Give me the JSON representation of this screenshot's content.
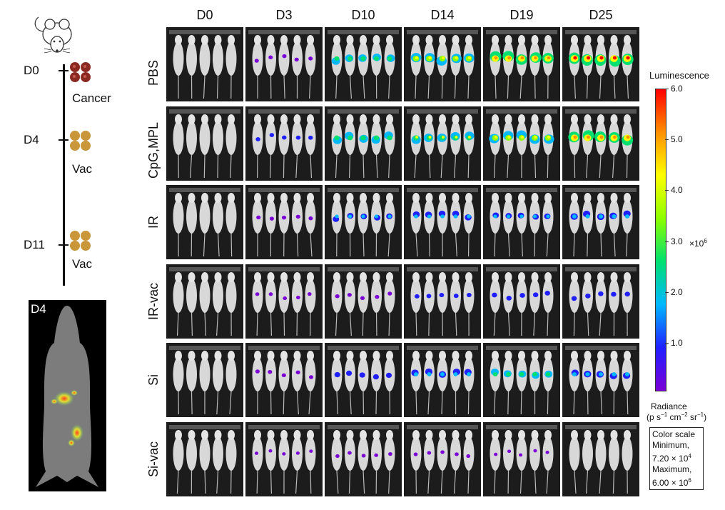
{
  "timeline": {
    "days": [
      "D0",
      "D4",
      "D11"
    ],
    "labels": [
      "Cancer",
      "Vac",
      "Vac"
    ],
    "inset_label": "D4",
    "mouse_icon": "mouse-icon",
    "cell_colors": {
      "cancer": "#8b2a22",
      "vac": "#c9963a"
    }
  },
  "grid": {
    "columns": [
      "D0",
      "D3",
      "D10",
      "D14",
      "D19",
      "D25"
    ],
    "rows": [
      "PBS",
      "CpG,MPL",
      "IR",
      "IR-vac",
      "Si",
      "Si-vac"
    ],
    "signal_levels": [
      [
        0.0,
        0.15,
        0.55,
        0.75,
        0.88,
        0.98
      ],
      [
        0.0,
        0.18,
        0.6,
        0.65,
        0.75,
        0.9
      ],
      [
        0.0,
        0.15,
        0.35,
        0.4,
        0.35,
        0.45
      ],
      [
        0.0,
        0.12,
        0.15,
        0.2,
        0.25,
        0.25
      ],
      [
        0.0,
        0.15,
        0.3,
        0.45,
        0.5,
        0.45
      ],
      [
        0.0,
        0.08,
        0.12,
        0.12,
        0.08,
        0.0
      ]
    ]
  },
  "colorbar": {
    "title": "Luminescence",
    "ticks": [
      "6.0",
      "5.0",
      "4.0",
      "3.0",
      "2.0",
      "1.0"
    ],
    "tick_values": [
      6.0,
      5.0,
      4.0,
      3.0,
      2.0,
      1.0
    ],
    "range": [
      0.072,
      6.0
    ],
    "multiplier_base": "×10",
    "multiplier_exp": "6",
    "unit_line1": "Radiance",
    "unit_line2": "(p s",
    "unit_sup1": "−1",
    "unit_mid1": " cm",
    "unit_sup2": "−2",
    "unit_mid2": " sr",
    "unit_sup3": "−1",
    "unit_end": ")",
    "colors": [
      "#7a00d6",
      "#2020ff",
      "#00b8ff",
      "#00e070",
      "#8cff00",
      "#ffff00",
      "#ff9000",
      "#ff0000"
    ]
  },
  "color_scale": {
    "line1": "Color scale",
    "line2": "Minimum,",
    "line3": "7.20 × 10",
    "line3_exp": "4",
    "line4": "Maximum,",
    "line5": "6.00 × 10",
    "line5_exp": "6"
  }
}
